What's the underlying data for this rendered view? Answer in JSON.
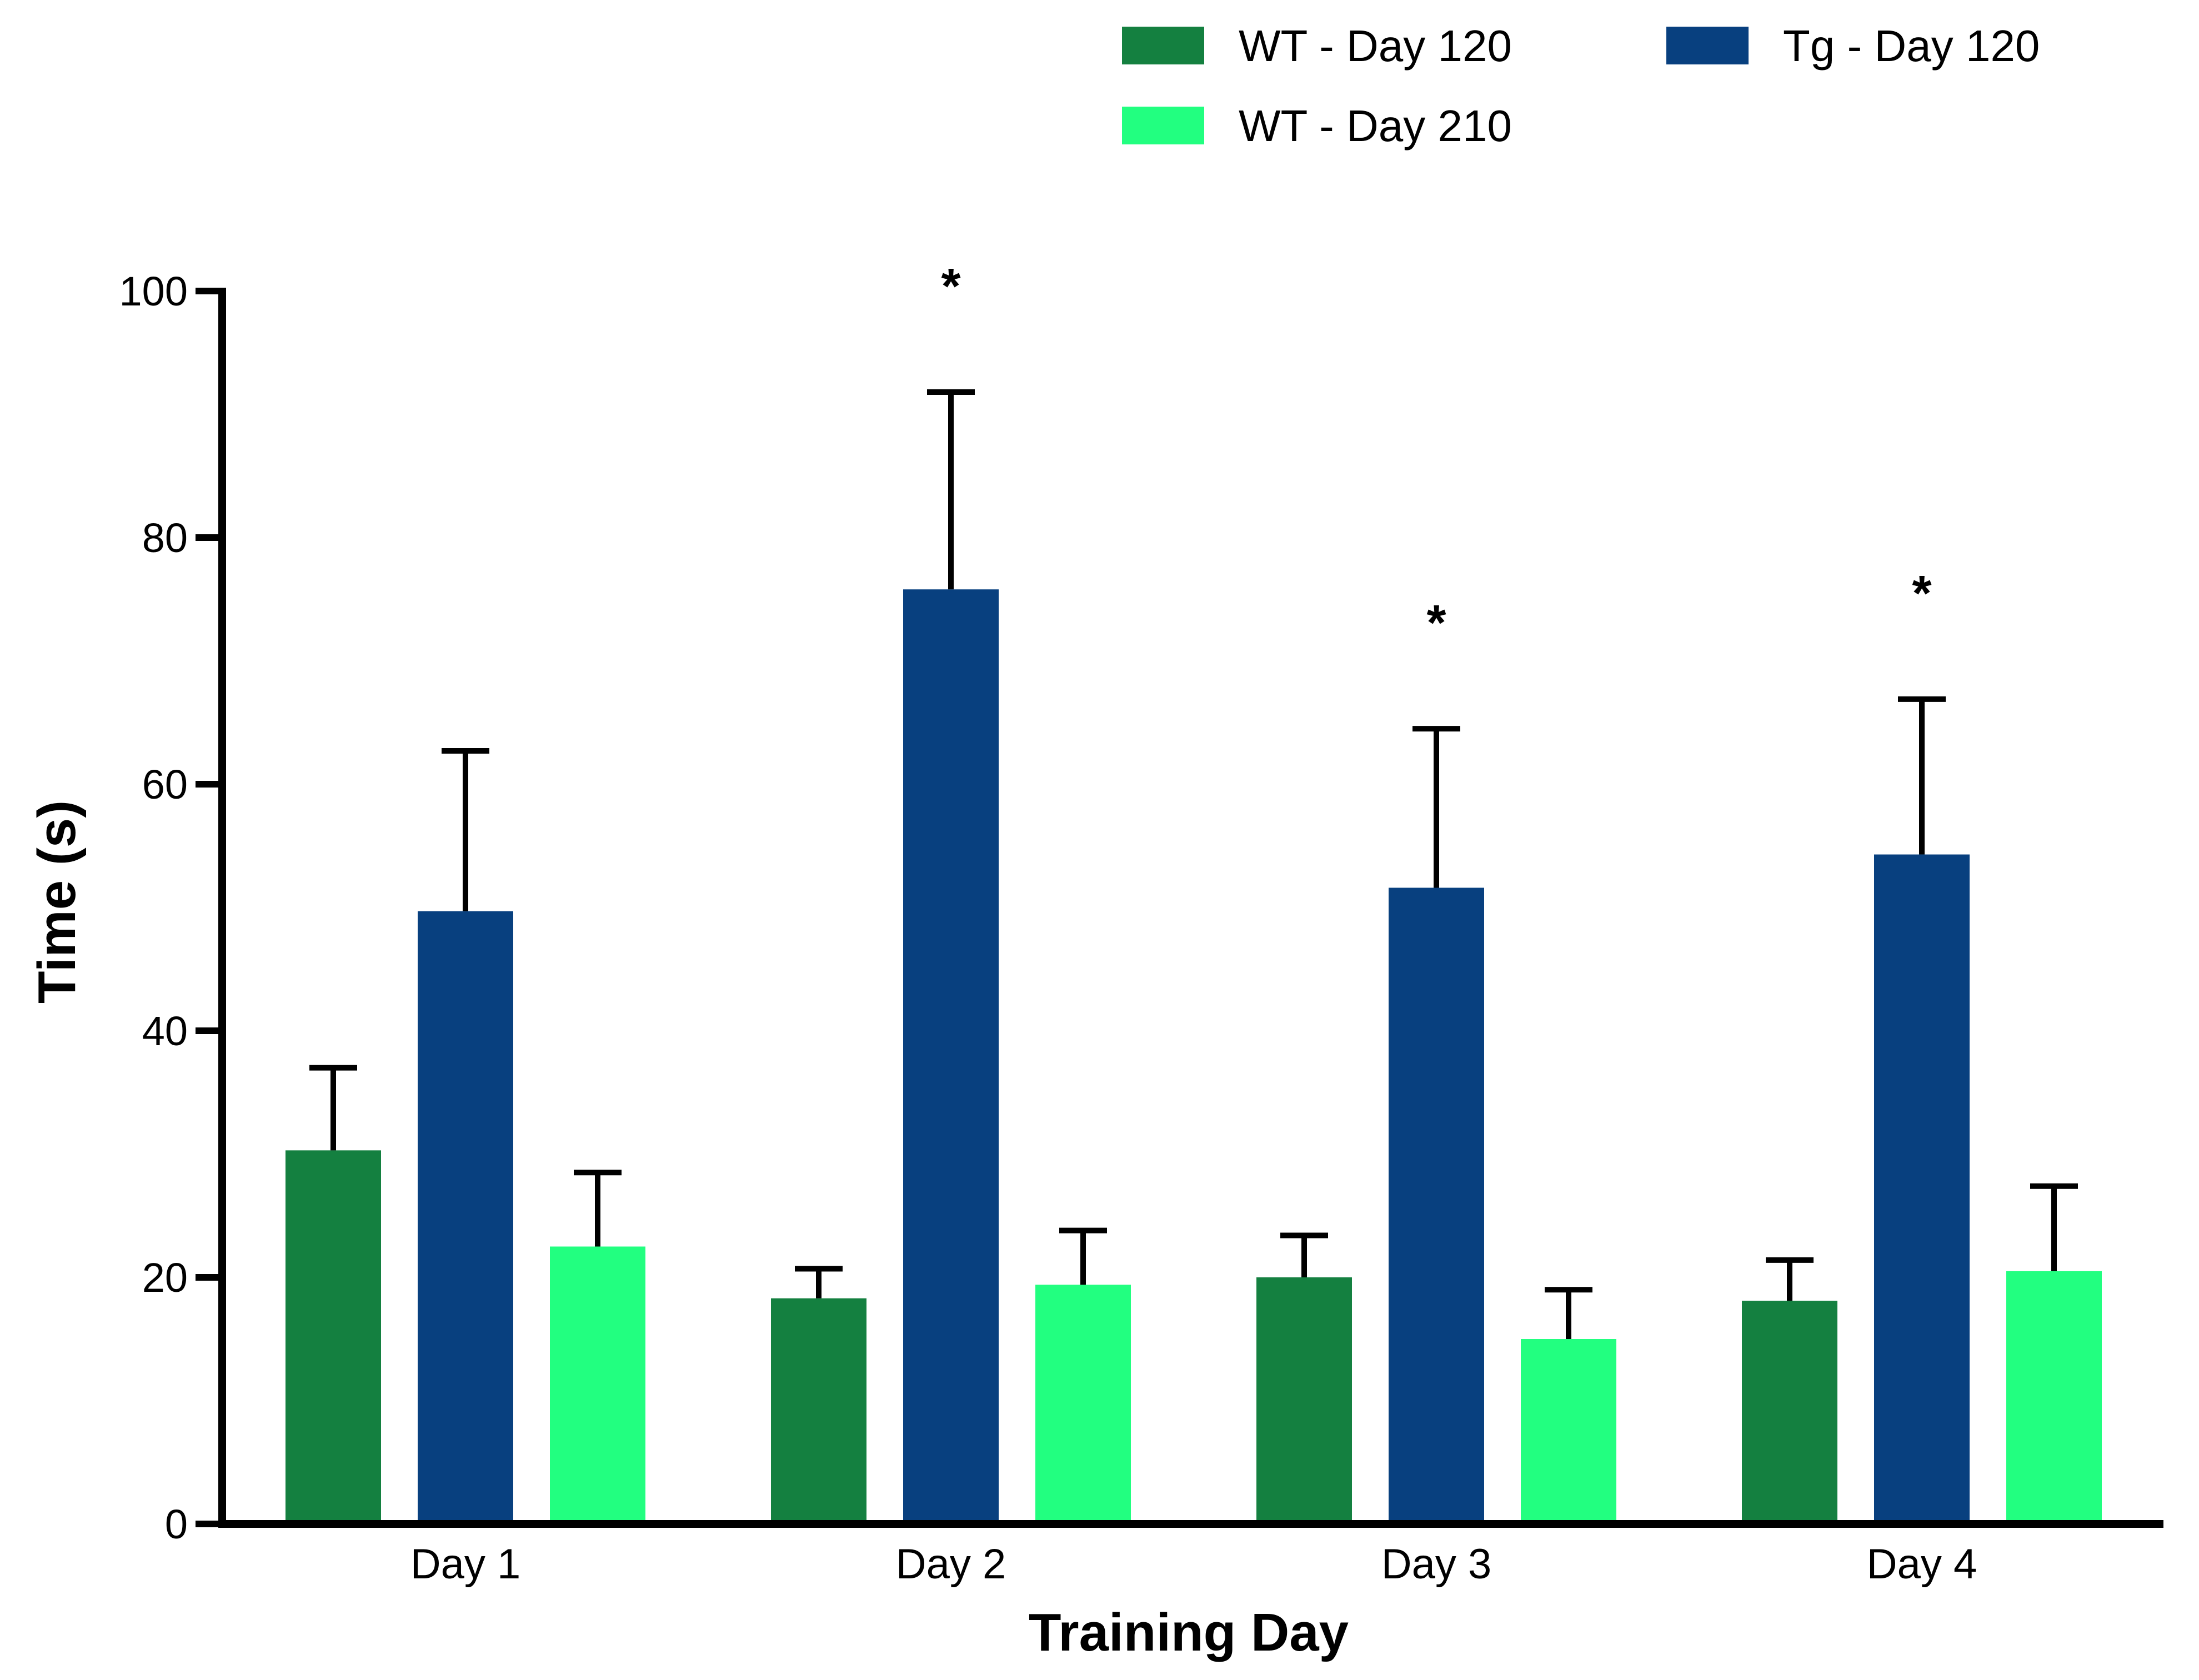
{
  "chart_data": {
    "type": "bar",
    "title": "",
    "xlabel": "Training Day",
    "ylabel": "Time (s)",
    "ylim": [
      0,
      100
    ],
    "yticks": [
      0,
      20,
      40,
      60,
      80,
      100
    ],
    "categories": [
      "Day 1",
      "Day 2",
      "Day 3",
      "Day 4"
    ],
    "legend_position": "top-right",
    "series": [
      {
        "name": "WT - Day 120",
        "color": "#148040",
        "values": [
          30.3,
          18.3,
          20.0,
          18.1
        ],
        "error": [
          6.7,
          2.4,
          3.4,
          3.3
        ]
      },
      {
        "name": "Tg - Day 120",
        "color": "#08407f",
        "values": [
          49.7,
          75.8,
          51.6,
          54.3
        ],
        "error": [
          13.0,
          16.0,
          12.9,
          12.6
        ]
      },
      {
        "name": "WT - Day 210",
        "color": "#22ff80",
        "values": [
          22.5,
          19.4,
          15.0,
          20.5
        ],
        "error": [
          6.0,
          4.4,
          4.0,
          6.9
        ]
      }
    ],
    "significance": [
      {
        "category": "Day 2",
        "series": "Tg - Day 120",
        "label": "*"
      },
      {
        "category": "Day 3",
        "series": "Tg - Day 120",
        "label": "*"
      },
      {
        "category": "Day 4",
        "series": "Tg - Day 120",
        "label": "*"
      }
    ]
  }
}
